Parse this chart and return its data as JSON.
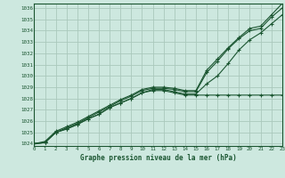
{
  "title": "Graphe pression niveau de la mer (hPa)",
  "bg_color": "#cde8df",
  "grid_color": "#aac8bc",
  "line_color": "#1a5530",
  "marker": "+",
  "x_ticks": [
    0,
    1,
    2,
    3,
    4,
    5,
    6,
    7,
    8,
    9,
    10,
    11,
    12,
    13,
    14,
    15,
    16,
    17,
    18,
    19,
    20,
    21,
    22,
    23
  ],
  "y_ticks": [
    1024,
    1025,
    1026,
    1027,
    1028,
    1029,
    1030,
    1031,
    1032,
    1033,
    1034,
    1035,
    1036
  ],
  "xlim": [
    0,
    23
  ],
  "ylim": [
    1023.8,
    1036.4
  ],
  "series": [
    [
      1024.0,
      1024.1,
      1025.0,
      1025.3,
      1025.7,
      1026.2,
      1026.6,
      1027.2,
      1027.6,
      1028.0,
      1028.5,
      1028.7,
      1028.7,
      1028.5,
      1028.3,
      1028.3,
      1028.3,
      1028.3,
      1028.3,
      1028.3,
      1028.3,
      1028.3,
      1028.3,
      1028.3
    ],
    [
      1024.0,
      1024.1,
      1025.0,
      1025.3,
      1025.7,
      1026.2,
      1026.6,
      1027.2,
      1027.6,
      1028.0,
      1028.5,
      1028.8,
      1028.8,
      1028.6,
      1028.4,
      1028.4,
      1029.3,
      1030.0,
      1031.1,
      1032.3,
      1033.2,
      1033.8,
      1034.6,
      1035.4
    ],
    [
      1024.0,
      1024.1,
      1025.0,
      1025.4,
      1025.8,
      1026.3,
      1026.8,
      1027.3,
      1027.8,
      1028.2,
      1028.7,
      1028.9,
      1028.9,
      1028.8,
      1028.6,
      1028.6,
      1030.3,
      1031.3,
      1032.4,
      1033.3,
      1034.0,
      1034.2,
      1035.2,
      1036.0
    ],
    [
      1024.0,
      1024.2,
      1025.1,
      1025.5,
      1025.9,
      1026.4,
      1026.9,
      1027.4,
      1027.9,
      1028.3,
      1028.8,
      1029.0,
      1029.0,
      1028.9,
      1028.7,
      1028.7,
      1030.5,
      1031.5,
      1032.5,
      1033.4,
      1034.2,
      1034.4,
      1035.4,
      1036.4
    ]
  ]
}
